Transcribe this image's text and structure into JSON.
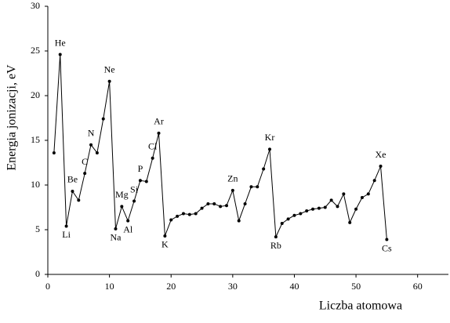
{
  "chart_data": {
    "type": "line",
    "x_label": "Liczba atomowa",
    "y_label": "Energia jonizacji, eV",
    "x": [
      1,
      2,
      3,
      4,
      5,
      6,
      7,
      8,
      9,
      10,
      11,
      12,
      13,
      14,
      15,
      16,
      17,
      18,
      19,
      20,
      21,
      22,
      23,
      24,
      25,
      26,
      27,
      28,
      29,
      30,
      31,
      32,
      33,
      34,
      35,
      36,
      37,
      38,
      39,
      40,
      41,
      42,
      43,
      44,
      45,
      46,
      47,
      48,
      49,
      50,
      51,
      52,
      53,
      54,
      55
    ],
    "series": [
      {
        "color": "#000000",
        "values": [
          13.6,
          24.6,
          5.4,
          9.3,
          8.3,
          11.3,
          14.5,
          13.6,
          17.4,
          21.6,
          5.1,
          7.6,
          6.0,
          8.2,
          10.5,
          10.4,
          13.0,
          15.8,
          4.3,
          6.1,
          6.5,
          6.8,
          6.7,
          6.8,
          7.4,
          7.9,
          7.9,
          7.6,
          7.7,
          9.4,
          6.0,
          7.9,
          9.8,
          9.8,
          11.8,
          14.0,
          4.2,
          5.7,
          6.2,
          6.6,
          6.8,
          7.1,
          7.3,
          7.4,
          7.5,
          8.3,
          7.6,
          9.0,
          5.8,
          7.3,
          8.6,
          9.0,
          10.5,
          12.1,
          3.9
        ]
      }
    ],
    "annotations": [
      {
        "text": "He",
        "x": 2
      },
      {
        "text": "Li",
        "x": 3
      },
      {
        "text": "Be",
        "x": 4
      },
      {
        "text": "C",
        "x": 6
      },
      {
        "text": "N",
        "x": 7
      },
      {
        "text": "Ne",
        "x": 10
      },
      {
        "text": "Na",
        "x": 11
      },
      {
        "text": "Mg",
        "x": 12
      },
      {
        "text": "Al",
        "x": 13
      },
      {
        "text": "Si",
        "x": 14
      },
      {
        "text": "P",
        "x": 15
      },
      {
        "text": "Cl",
        "x": 17
      },
      {
        "text": "Ar",
        "x": 18
      },
      {
        "text": "K",
        "x": 19
      },
      {
        "text": "Zn",
        "x": 30
      },
      {
        "text": "Kr",
        "x": 36
      },
      {
        "text": "Rb",
        "x": 37
      },
      {
        "text": "Xe",
        "x": 54
      },
      {
        "text": "Cs",
        "x": 55
      }
    ],
    "xlim": [
      0,
      65
    ],
    "xticks": [
      0,
      10,
      20,
      30,
      40,
      50,
      60
    ],
    "ylim": [
      0,
      30
    ],
    "yticks": [
      0,
      5,
      10,
      15,
      20,
      25,
      30
    ],
    "grid": false
  }
}
